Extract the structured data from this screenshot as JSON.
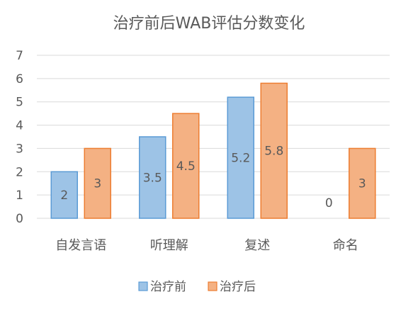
{
  "chart_data": {
    "type": "bar",
    "title": "治疗前后WAB评估分数变化",
    "xlabel": "",
    "ylabel": "",
    "categories": [
      "自发言语",
      "听理解",
      "复述",
      "命名"
    ],
    "series": [
      {
        "name": "治疗前",
        "values": [
          2,
          3.5,
          5.2,
          0
        ],
        "color": "#9DC3E6",
        "stroke": "#5B9BD5"
      },
      {
        "name": "治疗后",
        "values": [
          3,
          4.5,
          5.8,
          3
        ],
        "color": "#F4B183",
        "stroke": "#ED7D31"
      }
    ],
    "data_labels": [
      [
        "2",
        "3.5",
        "5.2",
        "0"
      ],
      [
        "3",
        "4.5",
        "5.8",
        "3"
      ]
    ],
    "ylim": [
      0,
      7
    ],
    "yticks": [
      "0",
      "1",
      "2",
      "3",
      "4",
      "5",
      "6",
      "7"
    ],
    "grid": true,
    "legend_position": "bottom",
    "gridline_color": "#D9D9D9",
    "text_color": "#595959"
  }
}
